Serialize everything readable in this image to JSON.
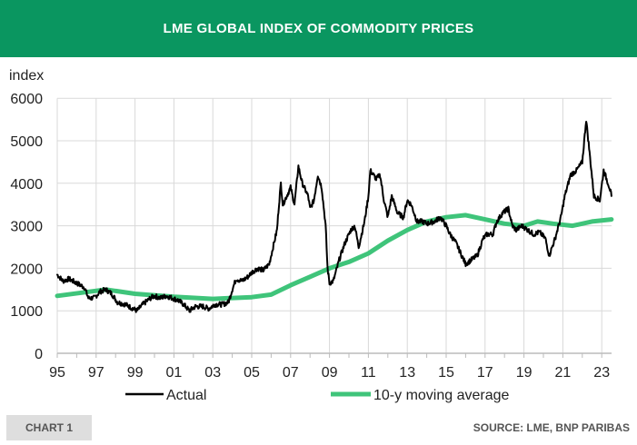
{
  "header": {
    "title": "LME GLOBAL INDEX OF COMMODITY PRICES"
  },
  "footer": {
    "chart_label": "CHART 1",
    "source": "SOURCE: LME, BNP PARIBAS"
  },
  "colors": {
    "header": "#0a9660",
    "actual": "#000000",
    "moving_average": "#3fc47a"
  },
  "chart_data": {
    "type": "line",
    "title": "LME GLOBAL INDEX OF COMMODITY PRICES",
    "ylabel": "index",
    "ylim": [
      0,
      6000
    ],
    "yticks": [
      0,
      1000,
      2000,
      3000,
      4000,
      5000,
      6000
    ],
    "xlim": [
      1995,
      2023.5
    ],
    "xticks": [
      1995,
      1997,
      1999,
      2001,
      2003,
      2005,
      2007,
      2009,
      2011,
      2013,
      2015,
      2017,
      2019,
      2021,
      2023
    ],
    "xtick_labels": [
      "95",
      "97",
      "99",
      "01",
      "03",
      "05",
      "07",
      "09",
      "11",
      "13",
      "15",
      "17",
      "19",
      "21",
      "23"
    ],
    "grid": true,
    "legend": "bottom",
    "series": [
      {
        "name": "Actual",
        "color": "#000000",
        "points": [
          [
            1995.0,
            1850
          ],
          [
            1995.3,
            1700
          ],
          [
            1995.6,
            1750
          ],
          [
            1996.0,
            1650
          ],
          [
            1996.4,
            1550
          ],
          [
            1996.6,
            1300
          ],
          [
            1996.9,
            1300
          ],
          [
            1997.2,
            1450
          ],
          [
            1997.5,
            1500
          ],
          [
            1997.8,
            1400
          ],
          [
            1998.1,
            1200
          ],
          [
            1998.5,
            1150
          ],
          [
            1998.9,
            1050
          ],
          [
            1999.1,
            1000
          ],
          [
            1999.4,
            1150
          ],
          [
            1999.8,
            1300
          ],
          [
            2000.0,
            1350
          ],
          [
            2000.3,
            1300
          ],
          [
            2000.6,
            1350
          ],
          [
            2000.9,
            1300
          ],
          [
            2001.2,
            1250
          ],
          [
            2001.5,
            1150
          ],
          [
            2001.8,
            1000
          ],
          [
            2002.1,
            1100
          ],
          [
            2002.5,
            1100
          ],
          [
            2002.8,
            1050
          ],
          [
            2003.1,
            1150
          ],
          [
            2003.5,
            1150
          ],
          [
            2003.8,
            1200
          ],
          [
            2004.0,
            1500
          ],
          [
            2004.2,
            1750
          ],
          [
            2004.5,
            1700
          ],
          [
            2004.8,
            1800
          ],
          [
            2005.0,
            1900
          ],
          [
            2005.3,
            2000
          ],
          [
            2005.6,
            1950
          ],
          [
            2005.9,
            2100
          ],
          [
            2006.1,
            2500
          ],
          [
            2006.3,
            2900
          ],
          [
            2006.4,
            3500
          ],
          [
            2006.5,
            4000
          ],
          [
            2006.6,
            3500
          ],
          [
            2006.8,
            3700
          ],
          [
            2007.0,
            3900
          ],
          [
            2007.2,
            3500
          ],
          [
            2007.4,
            4400
          ],
          [
            2007.6,
            4000
          ],
          [
            2007.9,
            3700
          ],
          [
            2008.0,
            3400
          ],
          [
            2008.2,
            3600
          ],
          [
            2008.4,
            4200
          ],
          [
            2008.6,
            3900
          ],
          [
            2008.8,
            3000
          ],
          [
            2008.9,
            2000
          ],
          [
            2009.0,
            1650
          ],
          [
            2009.2,
            1700
          ],
          [
            2009.5,
            2200
          ],
          [
            2009.8,
            2600
          ],
          [
            2010.1,
            2900
          ],
          [
            2010.3,
            3000
          ],
          [
            2010.5,
            2500
          ],
          [
            2010.8,
            3100
          ],
          [
            2011.0,
            3700
          ],
          [
            2011.1,
            4300
          ],
          [
            2011.4,
            4100
          ],
          [
            2011.6,
            4200
          ],
          [
            2011.8,
            3600
          ],
          [
            2012.0,
            3200
          ],
          [
            2012.2,
            3700
          ],
          [
            2012.5,
            3300
          ],
          [
            2012.8,
            3200
          ],
          [
            2013.0,
            3600
          ],
          [
            2013.2,
            3500
          ],
          [
            2013.5,
            3100
          ],
          [
            2013.8,
            3100
          ],
          [
            2014.0,
            3050
          ],
          [
            2014.4,
            3100
          ],
          [
            2014.7,
            3200
          ],
          [
            2015.0,
            3000
          ],
          [
            2015.2,
            2800
          ],
          [
            2015.5,
            2600
          ],
          [
            2015.8,
            2300
          ],
          [
            2016.0,
            2100
          ],
          [
            2016.3,
            2200
          ],
          [
            2016.6,
            2300
          ],
          [
            2016.9,
            2700
          ],
          [
            2017.1,
            2800
          ],
          [
            2017.4,
            2800
          ],
          [
            2017.6,
            3100
          ],
          [
            2017.9,
            3300
          ],
          [
            2018.2,
            3400
          ],
          [
            2018.4,
            3000
          ],
          [
            2018.6,
            2900
          ],
          [
            2018.9,
            3000
          ],
          [
            2019.2,
            2900
          ],
          [
            2019.5,
            2800
          ],
          [
            2019.8,
            2850
          ],
          [
            2020.1,
            2700
          ],
          [
            2020.3,
            2300
          ],
          [
            2020.6,
            2700
          ],
          [
            2020.9,
            3200
          ],
          [
            2021.1,
            3700
          ],
          [
            2021.4,
            4200
          ],
          [
            2021.7,
            4300
          ],
          [
            2022.0,
            4500
          ],
          [
            2022.2,
            5500
          ],
          [
            2022.4,
            4600
          ],
          [
            2022.6,
            3700
          ],
          [
            2022.9,
            3600
          ],
          [
            2023.1,
            4300
          ],
          [
            2023.4,
            3900
          ],
          [
            2023.5,
            3700
          ]
        ]
      },
      {
        "name": "10-y moving average",
        "color": "#3fc47a",
        "points": [
          [
            1995.0,
            1350
          ],
          [
            1997.5,
            1500
          ],
          [
            1999.0,
            1400
          ],
          [
            2001.0,
            1330
          ],
          [
            2003.0,
            1280
          ],
          [
            2005.0,
            1320
          ],
          [
            2006.0,
            1380
          ],
          [
            2007.0,
            1600
          ],
          [
            2008.0,
            1800
          ],
          [
            2009.0,
            2000
          ],
          [
            2010.0,
            2150
          ],
          [
            2011.0,
            2350
          ],
          [
            2012.0,
            2650
          ],
          [
            2013.0,
            2900
          ],
          [
            2014.0,
            3100
          ],
          [
            2015.0,
            3200
          ],
          [
            2016.0,
            3250
          ],
          [
            2017.0,
            3150
          ],
          [
            2018.0,
            3050
          ],
          [
            2019.0,
            3000
          ],
          [
            2019.7,
            3100
          ],
          [
            2020.5,
            3050
          ],
          [
            2021.5,
            3000
          ],
          [
            2022.5,
            3100
          ],
          [
            2023.5,
            3150
          ]
        ]
      }
    ]
  }
}
